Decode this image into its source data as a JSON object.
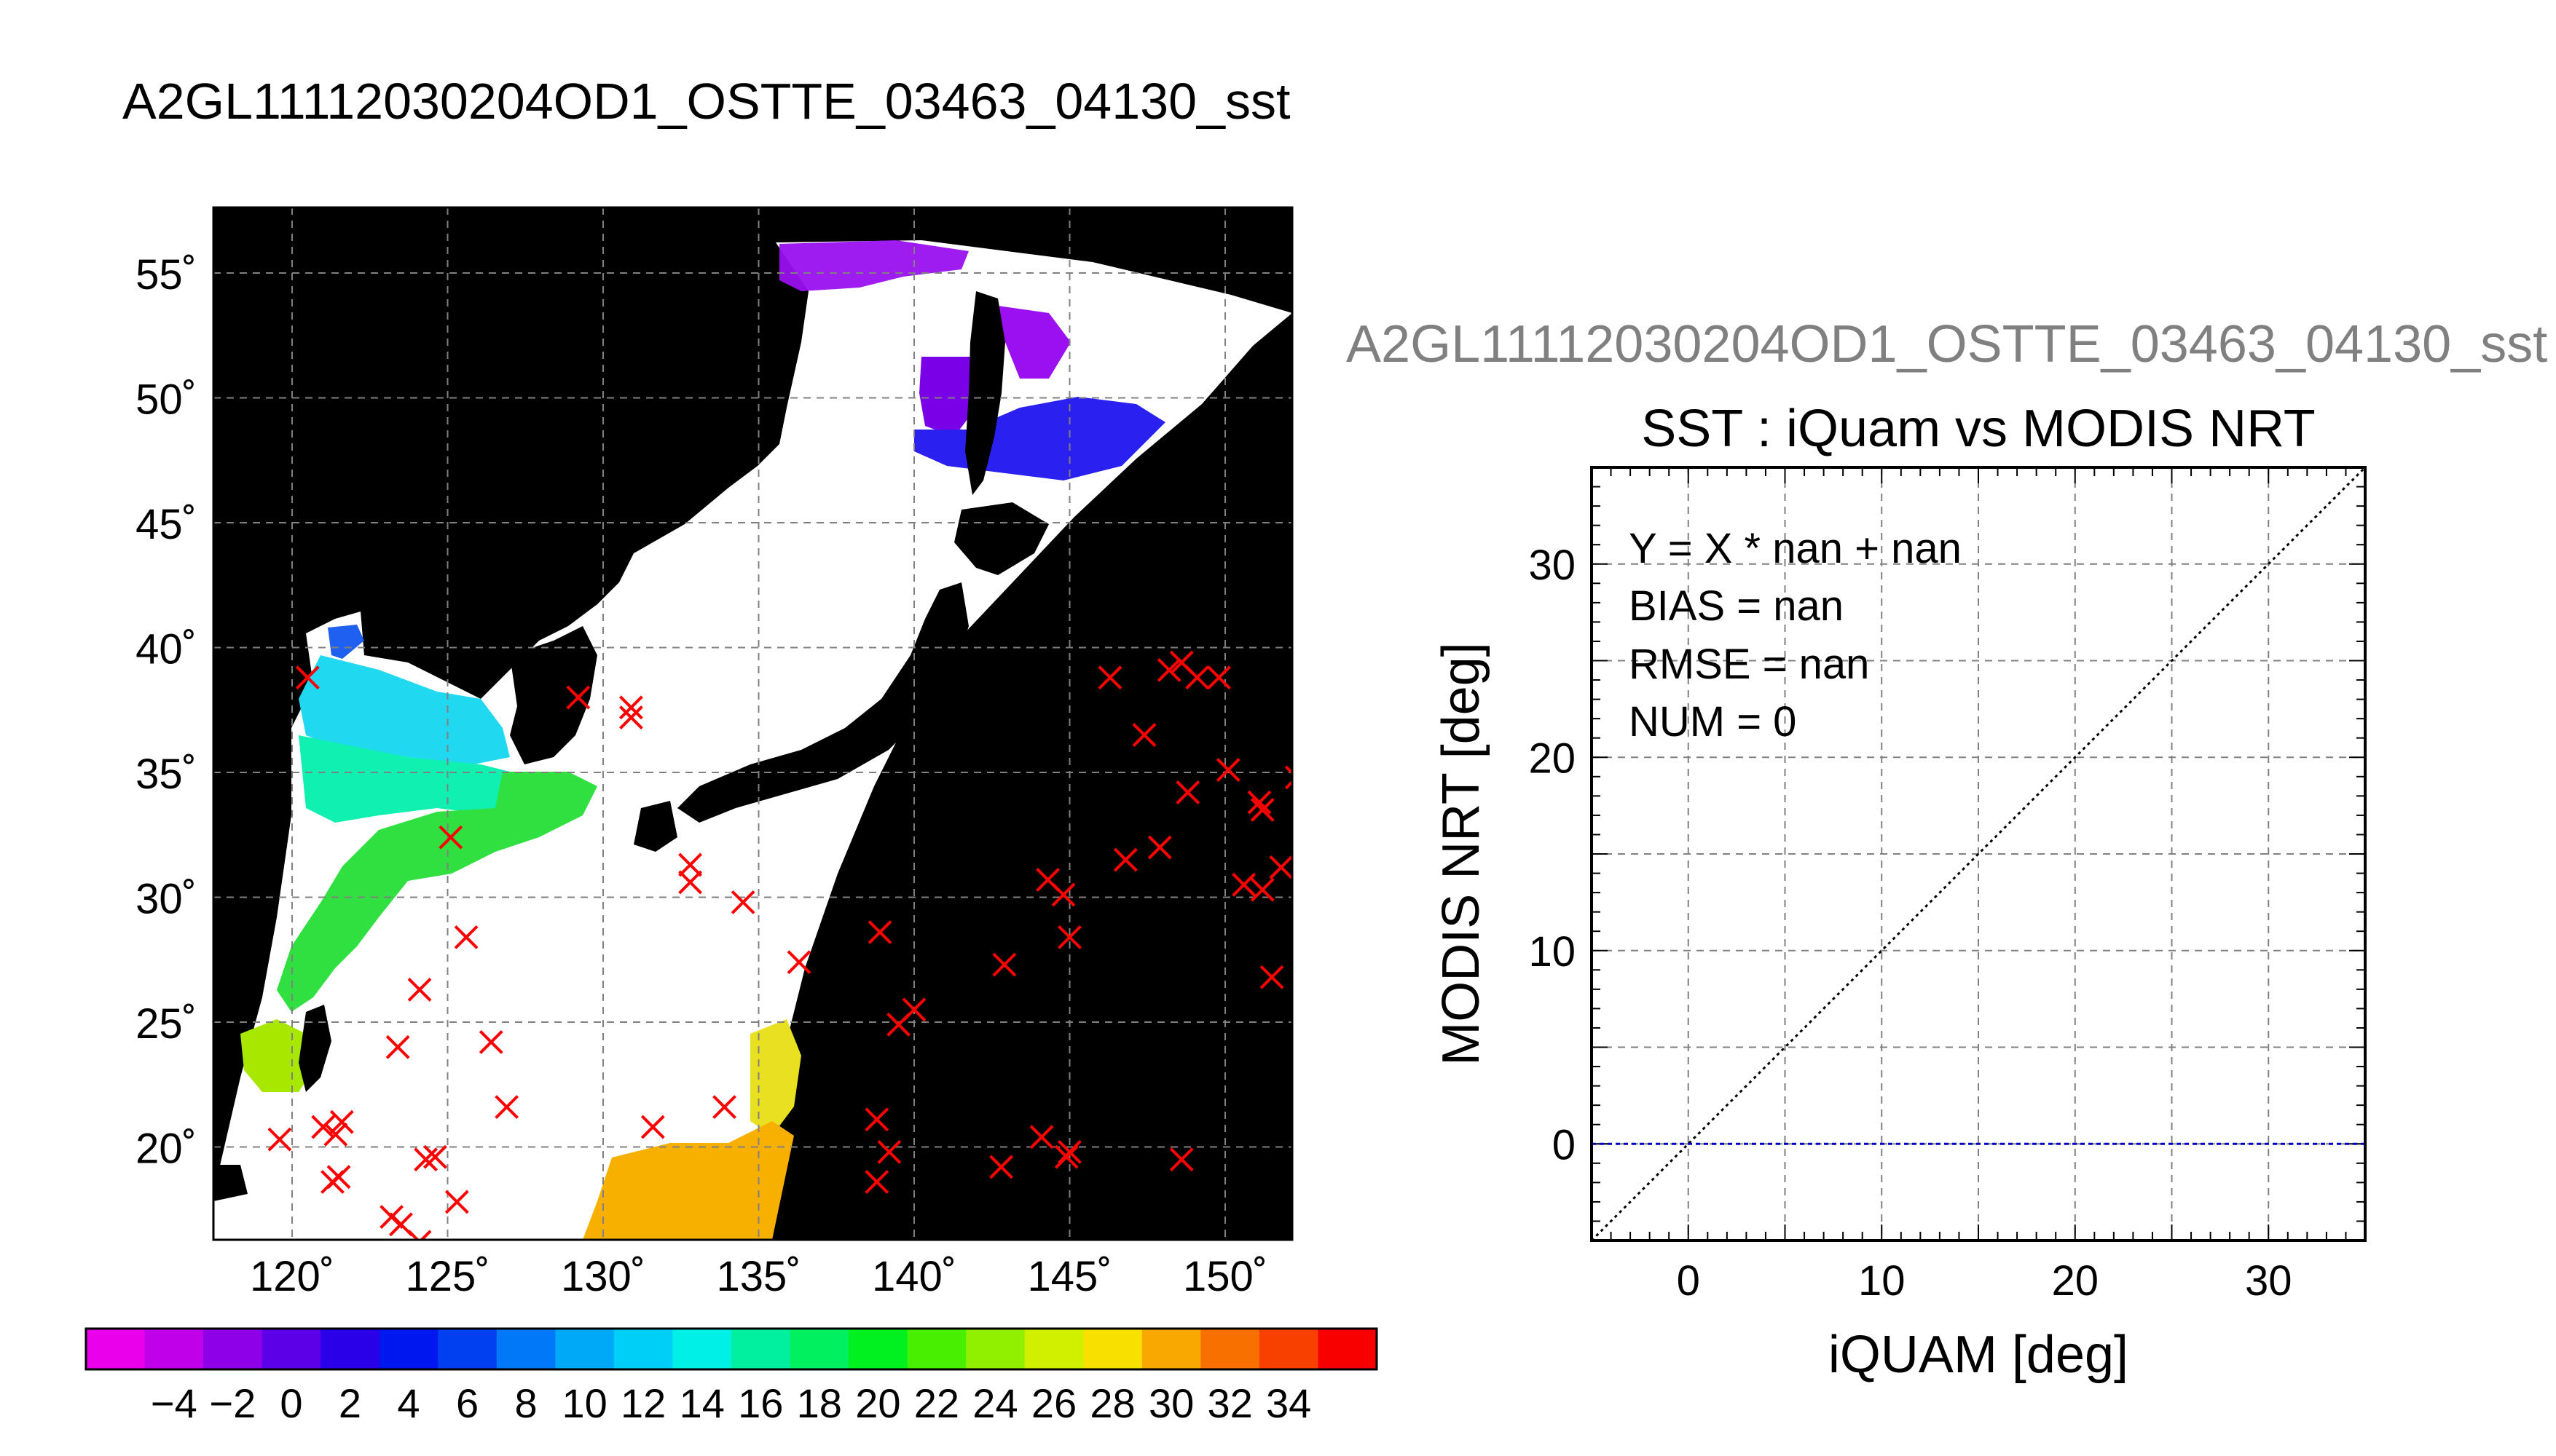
{
  "main_title": "A2GL11112030204OD1_OSTTE_03463_04130_sst",
  "map": {
    "lat_ticks": [
      "55˚",
      "50˚",
      "45˚",
      "40˚",
      "35˚",
      "30˚",
      "25˚",
      "20˚"
    ],
    "lon_ticks": [
      "120˚",
      "125˚",
      "130˚",
      "135˚",
      "140˚",
      "145˚",
      "150˚"
    ],
    "background_color": "#000000",
    "marker_color": "#ff0000",
    "grid": true,
    "iquam_markers_lonlat": [
      [
        120.5,
        38.8
      ],
      [
        129.2,
        38.0
      ],
      [
        130.9,
        37.6
      ],
      [
        130.9,
        37.2
      ],
      [
        125.1,
        32.4
      ],
      [
        132.8,
        31.3
      ],
      [
        132.8,
        30.6
      ],
      [
        134.5,
        29.8
      ],
      [
        125.6,
        28.4
      ],
      [
        136.3,
        27.4
      ],
      [
        124.1,
        26.3
      ],
      [
        123.4,
        24.0
      ],
      [
        126.4,
        24.2
      ],
      [
        121.0,
        20.8
      ],
      [
        121.6,
        21.0
      ],
      [
        121.4,
        20.5
      ],
      [
        119.6,
        20.3
      ],
      [
        126.9,
        21.6
      ],
      [
        131.6,
        20.8
      ],
      [
        133.9,
        21.6
      ],
      [
        124.3,
        19.5
      ],
      [
        124.6,
        19.6
      ],
      [
        121.3,
        18.6
      ],
      [
        121.5,
        18.8
      ],
      [
        125.3,
        17.8
      ],
      [
        123.2,
        17.2
      ],
      [
        123.5,
        16.9
      ],
      [
        124.1,
        16.2
      ],
      [
        138.9,
        28.6
      ],
      [
        139.5,
        24.9
      ],
      [
        140.0,
        25.5
      ],
      [
        138.8,
        21.1
      ],
      [
        139.2,
        19.8
      ],
      [
        138.8,
        18.6
      ],
      [
        142.9,
        27.3
      ],
      [
        144.3,
        30.7
      ],
      [
        144.8,
        30.1
      ],
      [
        145.0,
        28.4
      ],
      [
        144.1,
        20.4
      ],
      [
        144.9,
        19.6
      ],
      [
        145.0,
        19.8
      ],
      [
        142.8,
        19.2
      ],
      [
        146.3,
        38.8
      ],
      [
        147.4,
        36.5
      ],
      [
        148.2,
        39.1
      ],
      [
        148.6,
        39.4
      ],
      [
        149.1,
        38.8
      ],
      [
        149.8,
        38.8
      ],
      [
        150.1,
        35.1
      ],
      [
        148.8,
        34.2
      ],
      [
        151.1,
        33.8
      ],
      [
        151.2,
        33.5
      ],
      [
        152.3,
        34.8
      ],
      [
        147.9,
        32.0
      ],
      [
        146.8,
        31.5
      ],
      [
        150.6,
        30.5
      ],
      [
        151.2,
        30.3
      ],
      [
        151.8,
        31.2
      ],
      [
        151.5,
        26.8
      ],
      [
        148.6,
        19.5
      ]
    ]
  },
  "colorbar": {
    "labels": [
      "−4",
      "−2",
      "0",
      "2",
      "4",
      "6",
      "8",
      "10",
      "12",
      "14",
      "16",
      "18",
      "20",
      "22",
      "24",
      "26",
      "28",
      "30",
      "32",
      "34"
    ],
    "colors": [
      "#ea00ea",
      "#c000e8",
      "#8e00e8",
      "#5c00e8",
      "#2a00e8",
      "#0018f0",
      "#0040f0",
      "#0078f8",
      "#00a8f8",
      "#00d0f8",
      "#00f0e8",
      "#00f0a0",
      "#00f060",
      "#00f020",
      "#48f000",
      "#90f000",
      "#d0f000",
      "#f8e000",
      "#f8a800",
      "#f87000",
      "#f84000",
      "#f80000"
    ]
  },
  "overlay_title": "A2GL11112030204OD1_OSTTE_03463_04130_sst",
  "chart_data": {
    "type": "scatter",
    "title": "SST : iQuam vs MODIS NRT",
    "xlabel": "iQUAM [deg]",
    "ylabel": "MODIS NRT [deg]",
    "xlim": [
      -5,
      35
    ],
    "ylim": [
      -5,
      35
    ],
    "x_ticks": [
      "0",
      "10",
      "20",
      "30"
    ],
    "y_ticks": [
      "0",
      "10",
      "20",
      "30"
    ],
    "grid": true,
    "stats": {
      "fit": "Y = X * nan + nan",
      "bias": "BIAS = nan",
      "rmse": "RMSE = nan",
      "num": "NUM = 0"
    },
    "points": [],
    "reference_lines": [
      {
        "kind": "one_to_one",
        "style": "dotted",
        "color": "#000000"
      },
      {
        "kind": "horizontal",
        "y": 0,
        "style": "dashed",
        "color": "#0000c0"
      }
    ]
  }
}
